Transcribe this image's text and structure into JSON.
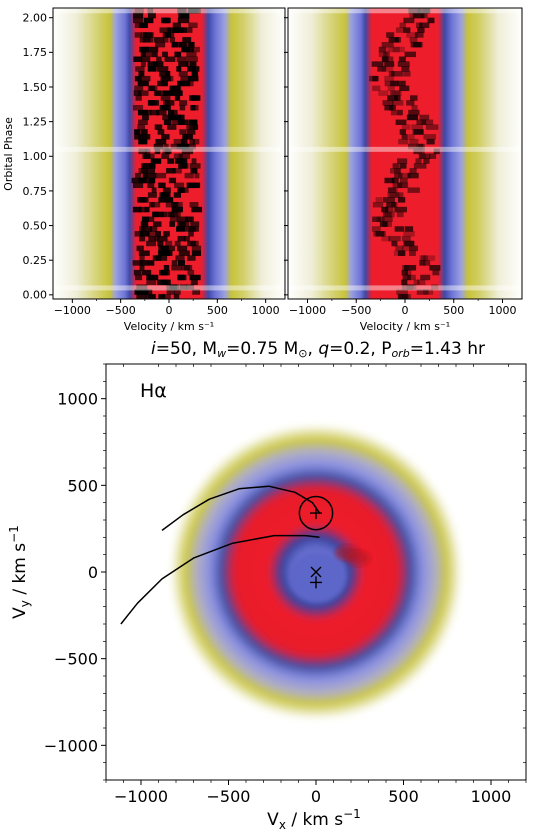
{
  "chart_data": [
    {
      "type": "heatmap",
      "panel": "observed trailed spectrum",
      "xlabel": "Velocity / km s⁻¹",
      "ylabel": "Orbital Phase",
      "xlim": [
        -1200,
        1200
      ],
      "ylim": [
        -0.03,
        2.07
      ],
      "xticks": [
        -1000,
        -500,
        0,
        500,
        1000
      ],
      "xtick_labels": [
        "−1000",
        "−500",
        "0",
        "500",
        "1000"
      ],
      "yticks": [
        0.0,
        0.25,
        0.5,
        0.75,
        1.0,
        1.25,
        1.5,
        1.75,
        2.0
      ],
      "ytick_labels": [
        "0.00",
        "0.25",
        "0.50",
        "0.75",
        "1.00",
        "1.25",
        "1.50",
        "1.75",
        "2.00"
      ],
      "colorscale": [
        "#ffffff",
        "#d4d28a",
        "#b8b800",
        "#8e8fe6",
        "#3e4aa8",
        "#ee1d2c",
        "#000000"
      ]
    },
    {
      "type": "heatmap",
      "panel": "computed trailed spectrum",
      "xlabel": "Velocity / km s⁻¹",
      "xlim": [
        -1200,
        1200
      ],
      "ylim": [
        -0.03,
        2.07
      ],
      "xticks": [
        -1000,
        -500,
        0,
        500,
        1000
      ],
      "xtick_labels": [
        "−1000",
        "−500",
        "0",
        "500",
        "1000"
      ],
      "colorscale": [
        "#ffffff",
        "#d4d28a",
        "#b8b800",
        "#8e8fe6",
        "#3e4aa8",
        "#ee1d2c",
        "#000000"
      ]
    },
    {
      "type": "heatmap",
      "panel": "Doppler tomogram",
      "title_parts": {
        "i": "i",
        "i_val": "=50, M",
        "mw_sub": "w",
        "mw_val": "=0.75 M",
        "sun": "⊙",
        "q_sep": ", ",
        "q": "q",
        "q_val": "=0.2, P",
        "porb_sub": "orb",
        "porb_val": "=1.43 hr"
      },
      "annotation": "Hα",
      "xlabel_main": "V",
      "xlabel_sub": "x",
      "xlabel_unit": " / km s",
      "xlabel_exp": "−1",
      "ylabel_main": "V",
      "ylabel_sub": "y",
      "ylabel_unit": " / km s",
      "ylabel_exp": "−1",
      "xlim": [
        -1200,
        1200
      ],
      "ylim": [
        -1200,
        1200
      ],
      "xticks": [
        -1000,
        -500,
        0,
        500,
        1000
      ],
      "xtick_labels": [
        "−1000",
        "−500",
        "0",
        "500",
        "1000"
      ],
      "yticks": [
        -1000,
        -500,
        0,
        500,
        1000
      ],
      "ytick_labels": [
        "−1000",
        "−500",
        "0",
        "500",
        "1000"
      ],
      "secondary_roche_lobe": {
        "center": [
          0,
          340
        ],
        "radius": 95
      },
      "gas_stream_trajectories": [
        [
          [
            -880,
            240
          ],
          [
            -760,
            330
          ],
          [
            -610,
            420
          ],
          [
            -440,
            480
          ],
          [
            -270,
            495
          ],
          [
            -120,
            460
          ],
          [
            -20,
            400
          ],
          [
            20,
            340
          ]
        ],
        [
          [
            -1115,
            -300
          ],
          [
            -1020,
            -180
          ],
          [
            -880,
            -40
          ],
          [
            -700,
            80
          ],
          [
            -480,
            165
          ],
          [
            -240,
            210
          ],
          [
            -60,
            210
          ],
          [
            20,
            200
          ]
        ]
      ],
      "centre_of_mass": [
        0,
        0
      ],
      "white_dwarf": [
        0,
        -60
      ],
      "secondary_star": [
        0,
        340
      ],
      "ring_intensity_peaks": [
        {
          "x": 180,
          "y": 110,
          "level": 1.0
        },
        {
          "x": 240,
          "y": 80,
          "level": 0.9
        }
      ],
      "colorscale": [
        "#ffffff",
        "#d4d28a",
        "#b8b800",
        "#8e8fe6",
        "#3e4aa8",
        "#ee1d2c",
        "#000000"
      ]
    }
  ]
}
